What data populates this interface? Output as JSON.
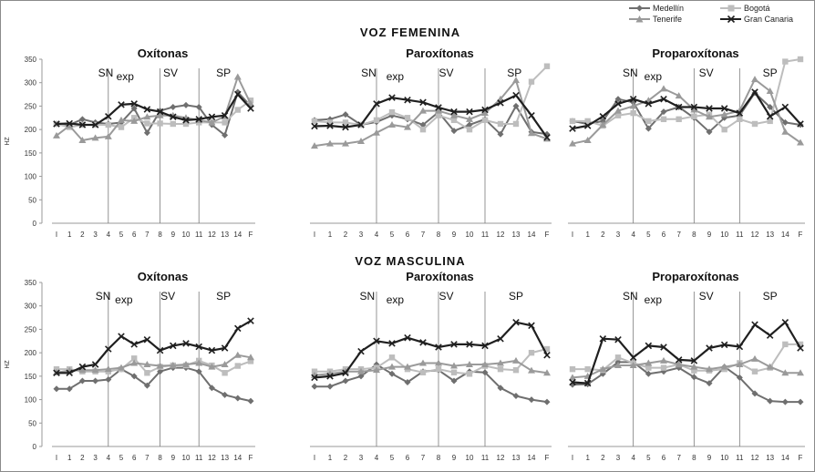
{
  "colors": {
    "Medellín": "#6f6f6f",
    "Bogotá": "#bdbdbd",
    "Tenerife": "#9a9a9a",
    "Gran Canaria": "#1f1f1f"
  },
  "legend": [
    "Medellín",
    "Bogotá",
    "Tenerife",
    "Gran Canaria"
  ],
  "sections": [
    "VOZ FEMENINA",
    "VOZ MASCULINA"
  ],
  "chart_data": [
    {
      "type": "line",
      "section": "VOZ FEMENINA",
      "title": "Oxítonas",
      "ylabel": "HZ",
      "ylim": [
        0,
        350
      ],
      "yticks": [
        0,
        50,
        100,
        150,
        200,
        250,
        300,
        350
      ],
      "categories": [
        "I",
        "1",
        "2",
        "3",
        "4",
        "5",
        "6",
        "7",
        "8",
        "9",
        "10",
        "11",
        "12",
        "13",
        "14",
        "F"
      ],
      "annotations": [
        {
          "text": "SN",
          "at": 3.8
        },
        {
          "text": "exp",
          "at": 5.3
        },
        {
          "text": "SV",
          "at": 8.8
        },
        {
          "text": "SP",
          "at": 12.9
        }
      ],
      "dividers": [
        4,
        8,
        11
      ],
      "series": [
        {
          "name": "Medellín",
          "values": [
            212,
            210,
            222,
            215,
            212,
            215,
            245,
            193,
            240,
            248,
            252,
            248,
            210,
            188,
            280,
            250
          ]
        },
        {
          "name": "Bogotá",
          "values": [
            212,
            205,
            210,
            210,
            210,
            205,
            225,
            213,
            213,
            212,
            212,
            215,
            215,
            215,
            242,
            262
          ]
        },
        {
          "name": "Tenerife",
          "values": [
            187,
            208,
            177,
            182,
            185,
            220,
            218,
            227,
            230,
            230,
            225,
            220,
            215,
            228,
            312,
            255
          ]
        },
        {
          "name": "Gran Canaria",
          "values": [
            212,
            213,
            210,
            210,
            228,
            253,
            255,
            243,
            238,
            227,
            220,
            222,
            227,
            230,
            275,
            245
          ]
        }
      ]
    },
    {
      "type": "line",
      "section": "VOZ FEMENINA",
      "title": "Paroxítonas",
      "ylabel": "",
      "ylim": [
        0,
        350
      ],
      "yticks": [],
      "categories": [
        "I",
        "1",
        "2",
        "3",
        "4",
        "5",
        "6",
        "7",
        "8",
        "9",
        "10",
        "11",
        "12",
        "13",
        "14",
        "F"
      ],
      "annotations": [
        {
          "text": "SN",
          "at": 3.5
        },
        {
          "text": "exp",
          "at": 5.2
        },
        {
          "text": "SV",
          "at": 8.5
        },
        {
          "text": "SP",
          "at": 12.9
        }
      ],
      "dividers": [
        4,
        8,
        11
      ],
      "series": [
        {
          "name": "Medellín",
          "values": [
            220,
            222,
            232,
            210,
            216,
            230,
            222,
            210,
            237,
            197,
            210,
            222,
            190,
            250,
            195,
            190
          ]
        },
        {
          "name": "Bogotá",
          "values": [
            218,
            215,
            215,
            210,
            220,
            237,
            225,
            200,
            230,
            220,
            200,
            220,
            212,
            212,
            302,
            335
          ]
        },
        {
          "name": "Tenerife",
          "values": [
            165,
            170,
            170,
            175,
            193,
            210,
            205,
            240,
            240,
            230,
            222,
            235,
            265,
            305,
            192,
            180
          ]
        },
        {
          "name": "Gran Canaria",
          "values": [
            207,
            208,
            205,
            210,
            255,
            268,
            263,
            258,
            247,
            238,
            238,
            242,
            257,
            273,
            230,
            183
          ]
        }
      ]
    },
    {
      "type": "line",
      "section": "VOZ FEMENINA",
      "title": "Proparoxítonas",
      "ylabel": "",
      "ylim": [
        0,
        350
      ],
      "yticks": [],
      "categories": [
        "I",
        "1",
        "2",
        "3",
        "4",
        "5",
        "6",
        "7",
        "8",
        "9",
        "10",
        "11",
        "12",
        "13",
        "14",
        "F"
      ],
      "annotations": [
        {
          "text": "SN",
          "at": 3.8
        },
        {
          "text": "exp",
          "at": 5.3
        },
        {
          "text": "SV",
          "at": 8.8
        },
        {
          "text": "SP",
          "at": 13.0
        }
      ],
      "dividers": [
        4,
        8,
        11
      ],
      "series": [
        {
          "name": "Medellín",
          "values": [
            218,
            212,
            218,
            265,
            258,
            202,
            238,
            248,
            225,
            195,
            225,
            230,
            278,
            248,
            215,
            210
          ]
        },
        {
          "name": "Bogotá",
          "values": [
            218,
            218,
            208,
            230,
            235,
            218,
            222,
            222,
            228,
            232,
            200,
            222,
            212,
            218,
            345,
            350
          ]
        },
        {
          "name": "Tenerife",
          "values": [
            170,
            177,
            210,
            240,
            250,
            262,
            287,
            272,
            242,
            227,
            232,
            240,
            307,
            282,
            195,
            172
          ]
        },
        {
          "name": "Gran Canaria",
          "values": [
            202,
            208,
            228,
            255,
            265,
            255,
            265,
            248,
            248,
            245,
            245,
            235,
            280,
            228,
            248,
            212
          ]
        }
      ]
    },
    {
      "type": "line",
      "section": "VOZ MASCULINA",
      "title": "Oxítonas",
      "ylabel": "HZ",
      "ylim": [
        0,
        350
      ],
      "yticks": [
        0,
        50,
        100,
        150,
        200,
        250,
        300,
        350
      ],
      "categories": [
        "I",
        "1",
        "2",
        "3",
        "4",
        "5",
        "6",
        "7",
        "8",
        "9",
        "10",
        "11",
        "12",
        "13",
        "14",
        "F"
      ],
      "annotations": [
        {
          "text": "SN",
          "at": 3.6
        },
        {
          "text": "exp",
          "at": 5.2
        },
        {
          "text": "SV",
          "at": 8.6
        },
        {
          "text": "SP",
          "at": 12.9
        }
      ],
      "dividers": [
        4,
        8,
        11
      ],
      "series": [
        {
          "name": "Medellín",
          "values": [
            123,
            123,
            140,
            140,
            143,
            165,
            150,
            130,
            160,
            168,
            168,
            160,
            125,
            110,
            103,
            97
          ]
        },
        {
          "name": "Bogotá",
          "values": [
            165,
            165,
            160,
            160,
            160,
            165,
            188,
            157,
            170,
            173,
            173,
            183,
            173,
            157,
            172,
            182
          ]
        },
        {
          "name": "Tenerife",
          "values": [
            158,
            162,
            163,
            163,
            165,
            168,
            178,
            175,
            172,
            173,
            175,
            178,
            170,
            175,
            195,
            190
          ]
        },
        {
          "name": "Gran Canaria",
          "values": [
            157,
            157,
            170,
            175,
            208,
            235,
            218,
            228,
            205,
            215,
            220,
            213,
            205,
            210,
            252,
            268
          ]
        }
      ]
    },
    {
      "type": "line",
      "section": "VOZ MASCULINA",
      "title": "Paroxítonas",
      "ylabel": "",
      "ylim": [
        0,
        350
      ],
      "yticks": [],
      "categories": [
        "I",
        "1",
        "2",
        "3",
        "4",
        "5",
        "6",
        "7",
        "8",
        "9",
        "10",
        "11",
        "12",
        "13",
        "14",
        "F"
      ],
      "annotations": [
        {
          "text": "SN",
          "at": 3.4
        },
        {
          "text": "exp",
          "at": 5.2
        },
        {
          "text": "SV",
          "at": 8.5
        },
        {
          "text": "SP",
          "at": 13.0
        }
      ],
      "dividers": [
        4,
        8,
        11
      ],
      "series": [
        {
          "name": "Medellín",
          "values": [
            128,
            128,
            140,
            150,
            175,
            155,
            137,
            160,
            163,
            140,
            160,
            158,
            125,
            108,
            100,
            95
          ]
        },
        {
          "name": "Bogotá",
          "values": [
            160,
            160,
            165,
            165,
            168,
            190,
            165,
            158,
            165,
            158,
            155,
            172,
            165,
            163,
            200,
            208
          ]
        },
        {
          "name": "Tenerife",
          "values": [
            152,
            155,
            160,
            160,
            163,
            170,
            170,
            178,
            178,
            172,
            175,
            175,
            178,
            183,
            162,
            157
          ]
        },
        {
          "name": "Gran Canaria",
          "values": [
            147,
            150,
            157,
            203,
            225,
            220,
            232,
            222,
            212,
            218,
            218,
            215,
            230,
            265,
            258,
            195
          ]
        }
      ]
    },
    {
      "type": "line",
      "section": "VOZ MASCULINA",
      "title": "Proparoxítonas",
      "ylabel": "",
      "ylim": [
        0,
        350
      ],
      "yticks": [],
      "categories": [
        "I",
        "1",
        "2",
        "3",
        "4",
        "5",
        "6",
        "7",
        "8",
        "9",
        "10",
        "11",
        "12",
        "13",
        "14",
        "F"
      ],
      "annotations": [
        {
          "text": "SN",
          "at": 3.8
        },
        {
          "text": "exp",
          "at": 5.3
        },
        {
          "text": "SV",
          "at": 8.8
        },
        {
          "text": "SP",
          "at": 13.0
        }
      ],
      "dividers": [
        4,
        8,
        11
      ],
      "series": [
        {
          "name": "Medellín",
          "values": [
            132,
            133,
            155,
            180,
            180,
            155,
            160,
            168,
            148,
            135,
            170,
            147,
            113,
            97,
            95,
            95
          ]
        },
        {
          "name": "Bogotá",
          "values": [
            165,
            165,
            163,
            190,
            178,
            168,
            168,
            175,
            162,
            162,
            165,
            178,
            160,
            168,
            218,
            218
          ]
        },
        {
          "name": "Tenerife",
          "values": [
            147,
            150,
            165,
            173,
            173,
            178,
            183,
            175,
            170,
            165,
            170,
            175,
            187,
            170,
            157,
            157
          ]
        },
        {
          "name": "Gran Canaria",
          "values": [
            137,
            135,
            230,
            228,
            190,
            215,
            212,
            185,
            183,
            210,
            217,
            213,
            260,
            237,
            265,
            210
          ]
        }
      ]
    }
  ]
}
